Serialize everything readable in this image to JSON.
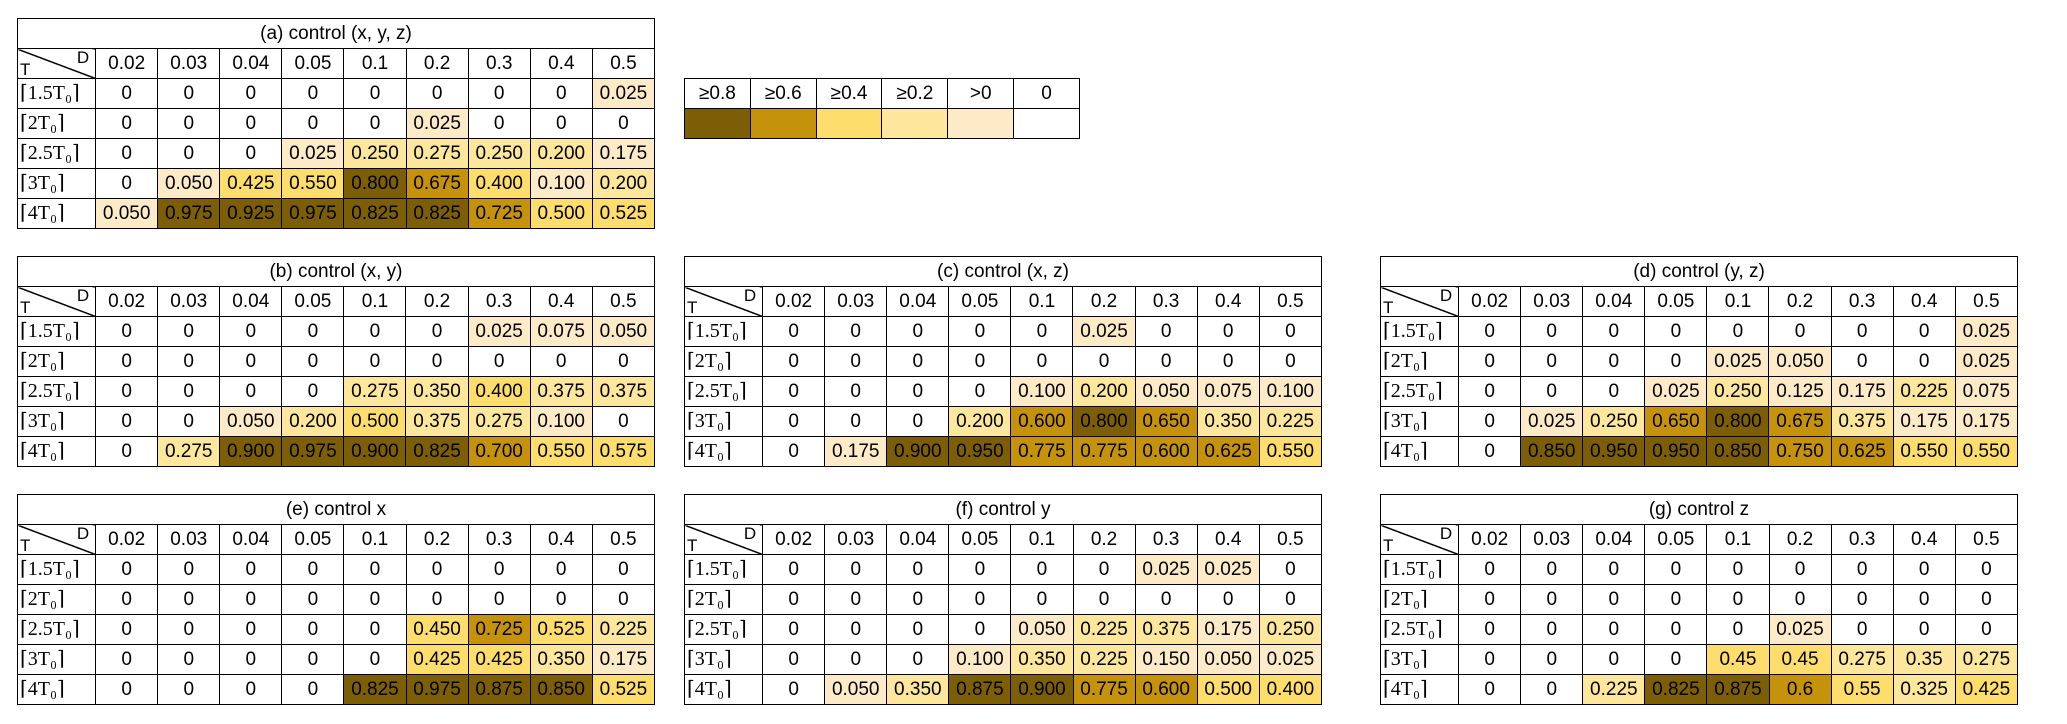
{
  "corner": {
    "row_label": "T",
    "col_label": "D"
  },
  "row_labels": [
    "⌈1.5T₀⌉",
    "⌈2T₀⌉",
    "⌈2.5T₀⌉",
    "⌈3T₀⌉",
    "⌈4T₀⌉"
  ],
  "col_labels": [
    "0.02",
    "0.03",
    "0.04",
    "0.05",
    "0.1",
    "0.2",
    "0.3",
    "0.4",
    "0.5"
  ],
  "legend": {
    "labels": [
      "≥0.8",
      "≥0.6",
      "≥0.4",
      "≥0.2",
      ">0",
      "0"
    ],
    "colors": [
      "#7b5e06",
      "#c5920b",
      "#fddd6b",
      "#fde79c",
      "#fdebc8",
      "#ffffff"
    ]
  },
  "tables": [
    {
      "id": "a",
      "title": "(a) control (x, y, z)",
      "rows": [
        [
          "0",
          "0",
          "0",
          "0",
          "0",
          "0",
          "0",
          "0",
          "0.025"
        ],
        [
          "0",
          "0",
          "0",
          "0",
          "0",
          "0.025",
          "0",
          "0",
          "0"
        ],
        [
          "0",
          "0",
          "0",
          "0.025",
          "0.250",
          "0.275",
          "0.250",
          "0.200",
          "0.175"
        ],
        [
          "0",
          "0.050",
          "0.425",
          "0.550",
          "0.800",
          "0.675",
          "0.400",
          "0.100",
          "0.200"
        ],
        [
          "0.050",
          "0.975",
          "0.925",
          "0.975",
          "0.825",
          "0.825",
          "0.725",
          "0.500",
          "0.525"
        ]
      ]
    },
    {
      "id": "b",
      "title": "(b) control (x, y)",
      "rows": [
        [
          "0",
          "0",
          "0",
          "0",
          "0",
          "0",
          "0.025",
          "0.075",
          "0.050"
        ],
        [
          "0",
          "0",
          "0",
          "0",
          "0",
          "0",
          "0",
          "0",
          "0"
        ],
        [
          "0",
          "0",
          "0",
          "0",
          "0.275",
          "0.350",
          "0.400",
          "0.375",
          "0.375"
        ],
        [
          "0",
          "0",
          "0.050",
          "0.200",
          "0.500",
          "0.375",
          "0.275",
          "0.100",
          "0"
        ],
        [
          "0",
          "0.275",
          "0.900",
          "0.975",
          "0.900",
          "0.825",
          "0.700",
          "0.550",
          "0.575"
        ]
      ]
    },
    {
      "id": "c",
      "title": "(c) control (x, z)",
      "rows": [
        [
          "0",
          "0",
          "0",
          "0",
          "0",
          "0.025",
          "0",
          "0",
          "0"
        ],
        [
          "0",
          "0",
          "0",
          "0",
          "0",
          "0",
          "0",
          "0",
          "0"
        ],
        [
          "0",
          "0",
          "0",
          "0",
          "0.100",
          "0.200",
          "0.050",
          "0.075",
          "0.100"
        ],
        [
          "0",
          "0",
          "0",
          "0.200",
          "0.600",
          "0.800",
          "0.650",
          "0.350",
          "0.225"
        ],
        [
          "0",
          "0.175",
          "0.900",
          "0.950",
          "0.775",
          "0.775",
          "0.600",
          "0.625",
          "0.550"
        ]
      ]
    },
    {
      "id": "d",
      "title": "(d) control (y, z)",
      "rows": [
        [
          "0",
          "0",
          "0",
          "0",
          "0",
          "0",
          "0",
          "0",
          "0.025"
        ],
        [
          "0",
          "0",
          "0",
          "0",
          "0.025",
          "0.050",
          "0",
          "0",
          "0.025"
        ],
        [
          "0",
          "0",
          "0",
          "0.025",
          "0.250",
          "0.125",
          "0.175",
          "0.225",
          "0.075"
        ],
        [
          "0",
          "0.025",
          "0.250",
          "0.650",
          "0.800",
          "0.675",
          "0.375",
          "0.175",
          "0.175"
        ],
        [
          "0",
          "0.850",
          "0.950",
          "0.950",
          "0.850",
          "0.750",
          "0.625",
          "0.550",
          "0.550"
        ]
      ]
    },
    {
      "id": "e",
      "title": "(e) control x",
      "rows": [
        [
          "0",
          "0",
          "0",
          "0",
          "0",
          "0",
          "0",
          "0",
          "0"
        ],
        [
          "0",
          "0",
          "0",
          "0",
          "0",
          "0",
          "0",
          "0",
          "0"
        ],
        [
          "0",
          "0",
          "0",
          "0",
          "0",
          "0.450",
          "0.725",
          "0.525",
          "0.225"
        ],
        [
          "0",
          "0",
          "0",
          "0",
          "0",
          "0.425",
          "0.425",
          "0.350",
          "0.175"
        ],
        [
          "0",
          "0",
          "0",
          "0",
          "0.825",
          "0.975",
          "0.875",
          "0.850",
          "0.525"
        ]
      ]
    },
    {
      "id": "f",
      "title": "(f) control y",
      "rows": [
        [
          "0",
          "0",
          "0",
          "0",
          "0",
          "0",
          "0.025",
          "0.025",
          "0"
        ],
        [
          "0",
          "0",
          "0",
          "0",
          "0",
          "0",
          "0",
          "0",
          "0"
        ],
        [
          "0",
          "0",
          "0",
          "0",
          "0.050",
          "0.225",
          "0.375",
          "0.175",
          "0.250"
        ],
        [
          "0",
          "0",
          "0",
          "0.100",
          "0.350",
          "0.225",
          "0.150",
          "0.050",
          "0.025"
        ],
        [
          "0",
          "0.050",
          "0.350",
          "0.875",
          "0.900",
          "0.775",
          "0.600",
          "0.500",
          "0.400"
        ]
      ]
    },
    {
      "id": "g",
      "title": "(g) control z",
      "rows": [
        [
          "0",
          "0",
          "0",
          "0",
          "0",
          "0",
          "0",
          "0",
          "0"
        ],
        [
          "0",
          "0",
          "0",
          "0",
          "0",
          "0",
          "0",
          "0",
          "0"
        ],
        [
          "0",
          "0",
          "0",
          "0",
          "0",
          "0.025",
          "0",
          "0",
          "0"
        ],
        [
          "0",
          "0",
          "0",
          "0",
          "0.45",
          "0.45",
          "0.275",
          "0.35",
          "0.275"
        ],
        [
          "0",
          "0",
          "0.225",
          "0.825",
          "0.875",
          "0.6",
          "0.55",
          "0.325",
          "0.425"
        ]
      ]
    }
  ]
}
